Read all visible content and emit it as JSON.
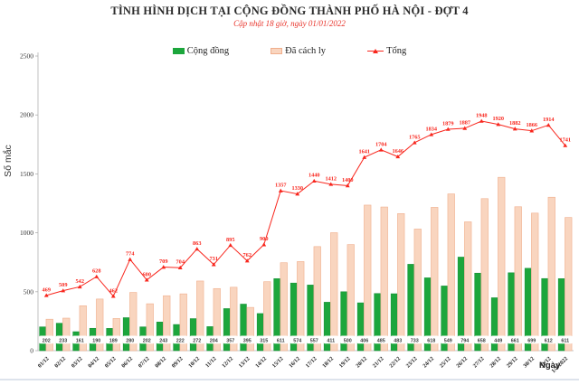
{
  "header": {
    "title": "TÌNH HÌNH DỊCH TẠI CỘNG ĐỒNG THÀNH PHỐ HÀ NỘI - ĐỢT 4",
    "subtitle": "Cập nhật 18 giờ, ngày 01/01/2022"
  },
  "legend": [
    {
      "label": "Cộng đồng",
      "color": "#1ca63c",
      "border": "#0f8a2f",
      "type": "bar"
    },
    {
      "label": "Đã cách ly",
      "color": "#f9d5bf",
      "border": "#f0ae8c",
      "type": "bar"
    },
    {
      "label": "Tổng",
      "color": "#f8261d",
      "type": "line"
    }
  ],
  "chart_data": {
    "type": "bar",
    "subtype": "grouped-bars-with-line",
    "title": "TÌNH HÌNH DỊCH TẠI CỘNG ĐỒNG THÀNH PHỐ HÀ NỘI - ĐỢT 4",
    "subtitle": "Cập nhật 18 giờ, ngày 01/01/2022",
    "xlabel": "Ngày",
    "ylabel": "Số mắc",
    "ylim": [
      0,
      2500
    ],
    "yticks": [
      0,
      500,
      1000,
      1500,
      2000,
      2500
    ],
    "grid": false,
    "legend_position": "top",
    "categories": [
      "01/12",
      "02/12",
      "03/12",
      "04/12",
      "05/12",
      "06/12",
      "07/12",
      "08/12",
      "09/12",
      "10/12",
      "11/12",
      "12/12",
      "13/12",
      "14/12",
      "15/12",
      "16/12",
      "17/12",
      "18/12",
      "19/12",
      "20/12",
      "21/12",
      "22/12",
      "23/12",
      "24/12",
      "25/12",
      "26/12",
      "27/12",
      "28/12",
      "29/12",
      "30/12",
      "31/12",
      "1/1/2022"
    ],
    "series": [
      {
        "name": "Cộng đồng",
        "type": "bar",
        "color": "#1ca63c",
        "border": "#0f8a2f",
        "data_labels": "boxed-at-base",
        "values": [
          202,
          233,
          161,
          190,
          189,
          280,
          202,
          243,
          222,
          272,
          204,
          357,
          395,
          315,
          611,
          574,
          557,
          411,
          500,
          406,
          485,
          483,
          733,
          618,
          549,
          794,
          658,
          449,
          661,
          699,
          612,
          611
        ]
      },
      {
        "name": "Đã cách ly",
        "type": "bar",
        "color": "#f9d5bf",
        "border": "#f0ae8c",
        "data_labels": "none",
        "values": [
          267,
          276,
          381,
          438,
          273,
          494,
          398,
          466,
          482,
          591,
          527,
          538,
          367,
          585,
          746,
          756,
          883,
          1001,
          900,
          1235,
          1219,
          1163,
          1032,
          1216,
          1330,
          1093,
          1290,
          1471,
          1221,
          1167,
          1302,
          1130
        ]
      },
      {
        "name": "Tổng",
        "type": "line",
        "color": "#f8261d",
        "marker": "triangle",
        "data_labels": "above-points",
        "values": [
          469,
          509,
          542,
          628,
          462,
          774,
          600,
          709,
          704,
          863,
          731,
          895,
          762,
          900,
          1357,
          1330,
          1440,
          1412,
          1400,
          1641,
          1704,
          1646,
          1765,
          1834,
          1879,
          1887,
          1948,
          1920,
          1882,
          1866,
          1914,
          1741
        ]
      }
    ]
  }
}
